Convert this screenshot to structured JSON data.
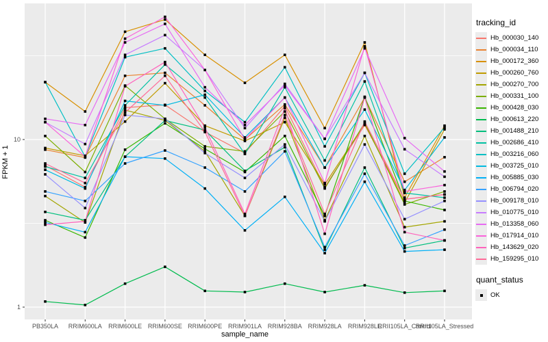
{
  "legend": {
    "tracking": {
      "title": "tracking_id"
    },
    "quant": {
      "title": "quant_status",
      "items": [
        {
          "label": "OK",
          "marker": "black-square"
        }
      ]
    }
  },
  "chart_data": {
    "type": "line",
    "title": "",
    "xlabel": "sample_name",
    "ylabel": "FPKM + 1",
    "y_scale": "log10",
    "ylim": [
      0.85,
      65
    ],
    "y_major_ticks": [
      10,
      1
    ],
    "y_minor_ticks": [
      31.62,
      3.162
    ],
    "grid": true,
    "panel_background": "#EBEBEB",
    "gridline_color": "#FFFFFF",
    "tick_text_color": "#4D4D4D",
    "marker": {
      "shape": "square",
      "color": "#000000",
      "size": 3.6,
      "legend": "OK"
    },
    "legend_position": "right",
    "categories": [
      "PB350LA",
      "RRIM600LA",
      "RRIM600LE",
      "RRIM600SE",
      "RRIM600PE",
      "RRIM901LA",
      "RRIM928BA",
      "RRIM928LA",
      "RRIM928LE",
      "RRII105LA_Control",
      "RRII105LA_Stressed"
    ],
    "series": [
      {
        "tracking_id": "Hb_000030_140",
        "color": "#F8766D",
        "values": [
          7.0,
          5.2,
          15.5,
          16.1,
          11.1,
          8.3,
          15.8,
          5.2,
          12.2,
          4.4,
          4.7
        ]
      },
      {
        "tracking_id": "Hb_000034_110",
        "color": "#EA8331",
        "values": [
          8.7,
          7.8,
          24,
          25,
          16,
          10.0,
          16.2,
          6.8,
          17.8,
          5.6,
          7.85
        ]
      },
      {
        "tracking_id": "Hb_000172_360",
        "color": "#D89000",
        "values": [
          22,
          14.7,
          44,
          52,
          32,
          21.8,
          32,
          11.7,
          38,
          4.5,
          12.1
        ]
      },
      {
        "tracking_id": "Hb_000260_760",
        "color": "#C09B00",
        "values": [
          8.9,
          8.0,
          12.8,
          21.7,
          12.1,
          9.8,
          12.7,
          5.4,
          12.4,
          4.2,
          11.5
        ]
      },
      {
        "tracking_id": "Hb_000270_700",
        "color": "#A3A500",
        "values": [
          4.6,
          3.2,
          15,
          13,
          8.5,
          3.5,
          13.5,
          3.3,
          10.5,
          3.0,
          3.25
        ]
      },
      {
        "tracking_id": "Hb_000331_100",
        "color": "#7CAE00",
        "values": [
          10.5,
          6.4,
          21,
          13.3,
          9.1,
          8.5,
          14.7,
          5.1,
          12.6,
          4.1,
          4.9
        ]
      },
      {
        "tracking_id": "Hb_000428_030",
        "color": "#39B600",
        "values": [
          3.3,
          2.6,
          8.7,
          12.5,
          8.8,
          6.4,
          10.5,
          3.5,
          18,
          4.3,
          3.8
        ]
      },
      {
        "tracking_id": "Hb_000613_220",
        "color": "#00BB4E",
        "values": [
          1.08,
          1.03,
          1.38,
          1.74,
          1.25,
          1.23,
          1.38,
          1.23,
          1.35,
          1.22,
          1.25
        ]
      },
      {
        "tracking_id": "Hb_001488_210",
        "color": "#00BF7D",
        "values": [
          3.7,
          3.3,
          7.9,
          13,
          11.4,
          6.5,
          9.0,
          2.2,
          6.8,
          2.25,
          2.5
        ]
      },
      {
        "tracking_id": "Hb_002686_410",
        "color": "#00C1A3",
        "values": [
          6.9,
          5.9,
          16,
          28,
          17.8,
          8.2,
          20.5,
          7.5,
          22.2,
          4.8,
          4.5
        ]
      },
      {
        "tracking_id": "Hb_003216_060",
        "color": "#00BFC4",
        "values": [
          22,
          7.9,
          31,
          35,
          19.5,
          12.7,
          27,
          9.1,
          25,
          6.25,
          11.8
        ]
      },
      {
        "tracking_id": "Hb_003725_010",
        "color": "#00BAE0",
        "values": [
          6.6,
          5.1,
          17,
          16,
          18.5,
          10.3,
          17.8,
          6.8,
          15.1,
          5.0,
          10.3
        ]
      },
      {
        "tracking_id": "Hb_005885_030",
        "color": "#00B0F6",
        "values": [
          3.2,
          2.8,
          7.9,
          7.7,
          5.1,
          2.87,
          4.55,
          2.1,
          5.6,
          2.15,
          2.2
        ]
      },
      {
        "tracking_id": "Hb_006794_020",
        "color": "#35A2FF",
        "values": [
          4.9,
          4.3,
          7.2,
          8.6,
          6.8,
          4.9,
          8.5,
          2.28,
          6.25,
          2.33,
          2.9
        ]
      },
      {
        "tracking_id": "Hb_009178_010",
        "color": "#9590FF",
        "values": [
          6.2,
          3.9,
          14,
          13.3,
          8.3,
          5.9,
          9.35,
          3.25,
          9.35,
          3.35,
          4.3
        ]
      },
      {
        "tracking_id": "Hb_010775_010",
        "color": "#C77CFF",
        "values": [
          12.7,
          9.4,
          32,
          42,
          26,
          11.7,
          21.5,
          10.1,
          25,
          8.75,
          6.0
        ]
      },
      {
        "tracking_id": "Hb_013358_060",
        "color": "#E76BF3",
        "values": [
          13.3,
          12.2,
          38,
          49,
          20.5,
          12.2,
          21,
          10.1,
          35,
          10.2,
          6.45
        ]
      },
      {
        "tracking_id": "Hb_017914_010",
        "color": "#FA62DB",
        "values": [
          12.7,
          7.9,
          40,
          54,
          26,
          10.0,
          17.8,
          5.5,
          36,
          4.9,
          5.35
        ]
      },
      {
        "tracking_id": "Hb_143629_020",
        "color": "#FF62BC",
        "values": [
          3.1,
          3.25,
          20.8,
          29,
          11.8,
          3.6,
          15.4,
          2.74,
          17.8,
          2.8,
          2.5
        ]
      },
      {
        "tracking_id": "Hb_159295_010",
        "color": "#FF6A98",
        "values": [
          7.2,
          5.5,
          14.5,
          24,
          11.1,
          3.5,
          14,
          3.6,
          12.8,
          4.4,
          4.7
        ]
      }
    ]
  }
}
